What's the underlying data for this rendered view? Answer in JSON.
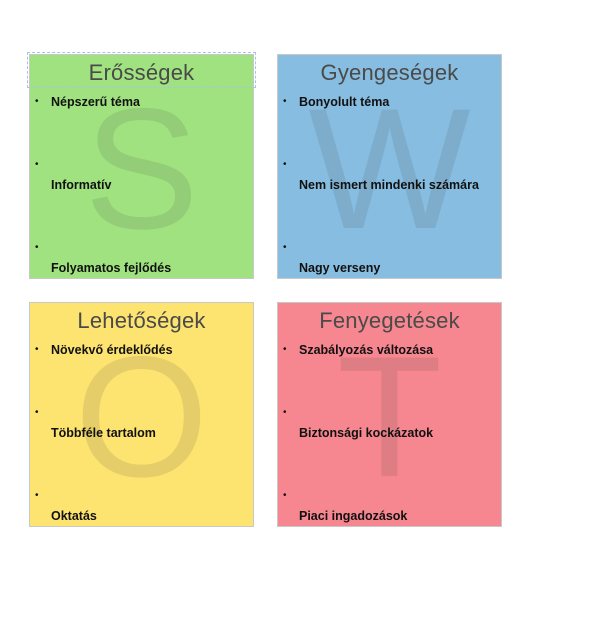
{
  "swot": {
    "strengths": {
      "letter": "S",
      "title": "Erősségek",
      "color": "#9fe27f",
      "items": [
        "Népszerű téma",
        "Informatív",
        "Folyamatos fejlődés"
      ]
    },
    "weaknesses": {
      "letter": "W",
      "title": "Gyengeségek",
      "color": "#87bde0",
      "items": [
        "Bonyolult téma",
        "Nem ismert mindenki számára",
        "Nagy verseny"
      ]
    },
    "opportunities": {
      "letter": "O",
      "title": "Lehetőségek",
      "color": "#fde36f",
      "items": [
        "Növekvő érdeklődés",
        "Többféle tartalom",
        "Oktatás"
      ]
    },
    "threats": {
      "letter": "T",
      "title": "Fenyegetések",
      "color": "#f6868f",
      "items": [
        "Szabályozás változása",
        "Biztonsági kockázatok",
        "Piaci ingadozások"
      ]
    }
  }
}
